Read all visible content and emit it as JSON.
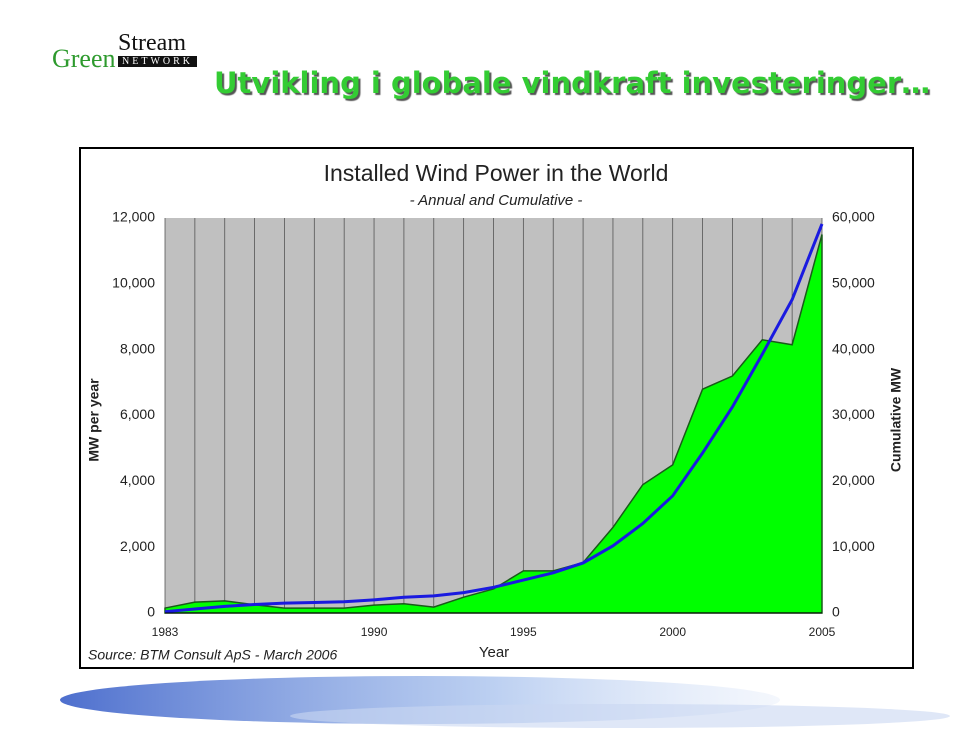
{
  "slide": {
    "logo_green": "Green",
    "logo_stream": "Stream",
    "logo_network": "NETWORK",
    "title": "Utvikling i globale vindkraft investeringer…"
  },
  "chart_data": {
    "type": "area",
    "title": "Installed Wind Power in the World",
    "subtitle": "- Annual and Cumulative -",
    "y_label": "MW per year",
    "y2_label": "Cumulative MW",
    "x_label": "Year",
    "source": "Source: BTM Consult ApS - March 2006",
    "x": [
      1983,
      1984,
      1985,
      1986,
      1987,
      1988,
      1989,
      1990,
      1991,
      1992,
      1993,
      1994,
      1995,
      1996,
      1997,
      1998,
      1999,
      2000,
      2001,
      2002,
      2003,
      2004,
      2005
    ],
    "xlim": [
      1983,
      2005
    ],
    "xticks": [
      1983,
      1990,
      1995,
      2000,
      2005
    ],
    "ylim": [
      0,
      12000
    ],
    "yticks": [
      0,
      {
        "value": 2000,
        "label": "2,000"
      },
      {
        "value": 4000,
        "label": "4,000"
      },
      {
        "value": 6000,
        "label": "6,000"
      },
      {
        "value": 8000,
        "label": "8,000"
      },
      {
        "value": 10000,
        "label": "10,000"
      },
      {
        "value": 12000,
        "label": "12,000"
      }
    ],
    "y2lim": [
      0,
      60000
    ],
    "y2ticks": [
      0,
      {
        "value": 10000,
        "label": "10,000"
      },
      {
        "value": 20000,
        "label": "20,000"
      },
      {
        "value": 30000,
        "label": "30,000"
      },
      {
        "value": 40000,
        "label": "40,000"
      },
      {
        "value": 50000,
        "label": "50,000"
      },
      {
        "value": 60000,
        "label": "60,000"
      }
    ],
    "grid": "x",
    "series": [
      {
        "color": "#00ff00",
        "values": [
          150,
          330,
          370,
          250,
          150,
          150,
          150,
          240,
          280,
          180,
          480,
          730,
          1280,
          1280,
          1530,
          2600,
          3900,
          4500,
          6800,
          7200,
          8300,
          8150,
          11500
        ]
      },
      {
        "color": "#1a1ae0",
        "type": "line",
        "axis": "y2",
        "values": [
          200,
          600,
          1000,
          1300,
          1500,
          1600,
          1700,
          2000,
          2400,
          2600,
          3100,
          3900,
          5000,
          6100,
          7600,
          10200,
          13600,
          17800,
          24300,
          31300,
          39300,
          47600,
          59100
        ]
      }
    ]
  }
}
